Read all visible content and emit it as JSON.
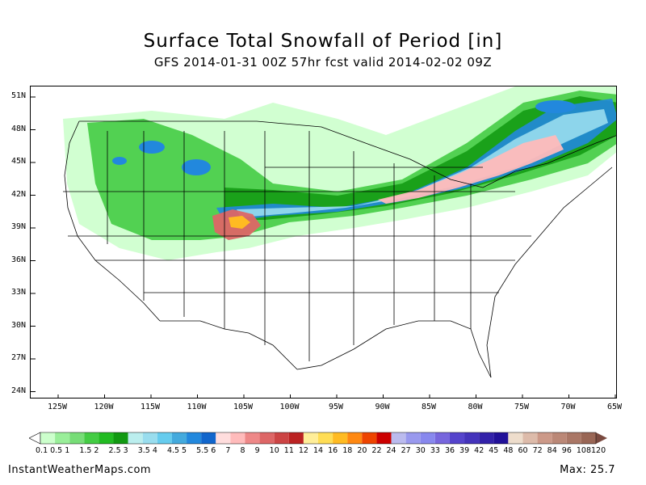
{
  "header": {
    "title": "Surface Total Snowfall of Period [in]",
    "subtitle": "GFS 2014-01-31 00Z 57hr fcst valid 2014-02-02 09Z"
  },
  "footer": {
    "site": "InstantWeatherMaps.com",
    "max_label": "Max:",
    "max_value": "25.7"
  },
  "map": {
    "lat_labels": [
      "51N",
      "48N",
      "45N",
      "42N",
      "39N",
      "36N",
      "33N",
      "30N",
      "27N",
      "24N"
    ],
    "lon_labels": [
      "125W",
      "120W",
      "115W",
      "110W",
      "105W",
      "100W",
      "95W",
      "90W",
      "85W",
      "80W",
      "75W",
      "70W",
      "65W"
    ]
  },
  "legend": {
    "labels": [
      "0.1",
      "0.5",
      "1",
      "1.5",
      "2",
      "2.5",
      "3",
      "3.5",
      "4",
      "4.5",
      "5",
      "5.5",
      "6",
      "7",
      "8",
      "9",
      "10",
      "11",
      "12",
      "14",
      "16",
      "18",
      "20",
      "22",
      "24",
      "27",
      "30",
      "33",
      "36",
      "39",
      "42",
      "45",
      "48",
      "60",
      "72",
      "84",
      "96",
      "108",
      "120"
    ],
    "colors": [
      "#ccffcc",
      "#99ee99",
      "#77dd77",
      "#44cc44",
      "#22bb22",
      "#119911",
      "#bbeeee",
      "#99ddee",
      "#66ccee",
      "#44aadd",
      "#2288dd",
      "#1166cc",
      "#ffdddd",
      "#ffbbbb",
      "#ee8888",
      "#dd6666",
      "#cc4444",
      "#bb2222",
      "#ffee99",
      "#ffdd55",
      "#ffbb22",
      "#ff8811",
      "#ee4400",
      "#cc0000",
      "#bbbbee",
      "#9999ee",
      "#8888ee",
      "#7766dd",
      "#5544cc",
      "#4433bb",
      "#3322aa",
      "#221199",
      "#eeddcc",
      "#ddbbaa",
      "#cc9988",
      "#bb8877",
      "#aa7766",
      "#996655"
    ]
  },
  "snow_colors": {
    "light_green": "#ccffcc",
    "green": "#44cc44",
    "dark_green": "#119911",
    "light_blue": "#99ddee",
    "blue": "#2288dd",
    "pink": "#ffbbbb",
    "red": "#dd6666",
    "orange": "#ffbb22"
  }
}
